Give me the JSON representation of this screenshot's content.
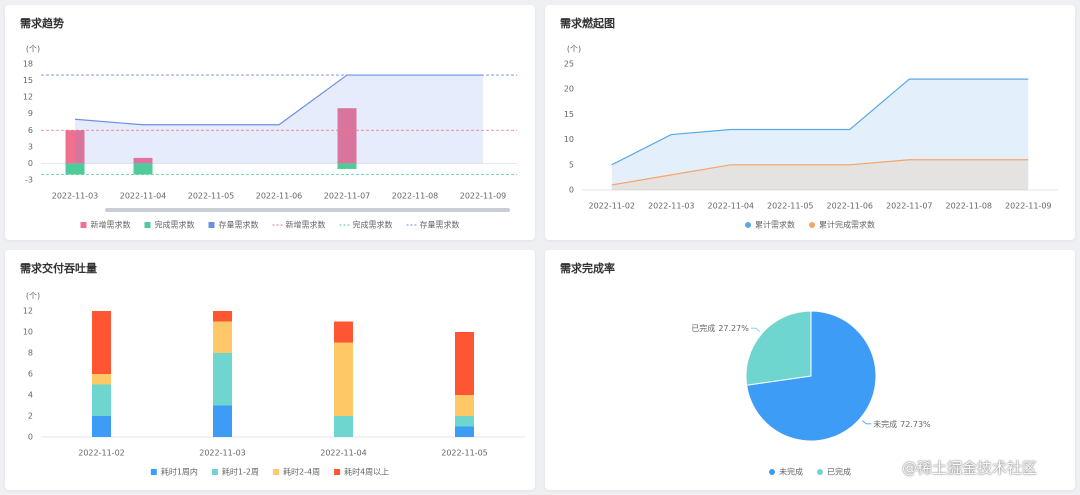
{
  "watermark": "@稀土掘金技术社区",
  "chart_data": [
    {
      "type": "bar",
      "title": "需求趋势",
      "y_label": "(个)",
      "stacked": true,
      "categories": [
        "2022-11-03",
        "2022-11-04",
        "2022-11-05",
        "2022-11-06",
        "2022-11-07",
        "2022-11-08",
        "2022-11-09"
      ],
      "ylim": [
        -3,
        18
      ],
      "yticks": [
        -3,
        0,
        3,
        6,
        9,
        12,
        15,
        18
      ],
      "series": [
        {
          "name": "新增需求数",
          "color": "#f0708f",
          "values": [
            6,
            1,
            0,
            0,
            10,
            0,
            0
          ]
        },
        {
          "name": "完成需求数",
          "color": "#4fcb9a",
          "values": [
            -2,
            -2,
            0,
            0,
            -1,
            0,
            0
          ]
        },
        {
          "name": "存量需求数",
          "color": "#6c8fe6",
          "type": "line",
          "area": true,
          "values": [
            8,
            7,
            7,
            7,
            16,
            16,
            16
          ]
        }
      ],
      "mark_lines": [
        {
          "name": "新增需求数",
          "color": "#f0708f",
          "value": 6
        },
        {
          "name": "完成需求数",
          "color": "#4fcb9a",
          "value": -2
        },
        {
          "name": "存量需求数",
          "color": "#6c8fe6",
          "value": 16
        }
      ]
    },
    {
      "type": "line",
      "title": "需求燃起图",
      "y_label": "(个)",
      "categories": [
        "2022-11-02",
        "2022-11-03",
        "2022-11-04",
        "2022-11-05",
        "2022-11-06",
        "2022-11-07",
        "2022-11-08",
        "2022-11-09"
      ],
      "ylim": [
        0,
        25
      ],
      "yticks": [
        0,
        5,
        10,
        15,
        20,
        25
      ],
      "series": [
        {
          "name": "累计需求数",
          "color": "#5aa9e6",
          "area": true,
          "values": [
            5,
            11,
            12,
            12,
            12,
            22,
            22,
            22
          ]
        },
        {
          "name": "累计完成需求数",
          "color": "#f4a56a",
          "area": true,
          "values": [
            1,
            3,
            5,
            5,
            5,
            6,
            6,
            6
          ]
        }
      ]
    },
    {
      "type": "bar",
      "title": "需求交付吞吐量",
      "y_label": "(个)",
      "stacked": true,
      "categories": [
        "2022-11-02",
        "2022-11-03",
        "2022-11-04",
        "2022-11-05"
      ],
      "ylim": [
        0,
        12
      ],
      "yticks": [
        0,
        2,
        4,
        6,
        8,
        10,
        12
      ],
      "series": [
        {
          "name": "耗时1周内",
          "color": "#3d9cf5",
          "values": [
            2,
            3,
            0,
            1
          ]
        },
        {
          "name": "耗时1-2周",
          "color": "#6fd6cf",
          "values": [
            3,
            5,
            2,
            1
          ]
        },
        {
          "name": "耗时2-4周",
          "color": "#fdc865",
          "values": [
            1,
            3,
            7,
            2
          ]
        },
        {
          "name": "耗时4周以上",
          "color": "#fe5533",
          "values": [
            6,
            1,
            2,
            6
          ]
        }
      ]
    },
    {
      "type": "pie",
      "title": "需求完成率",
      "categories": [
        "未完成",
        "已完成"
      ],
      "values": [
        72.73,
        27.27
      ],
      "value_labels": [
        "72.73%",
        "27.27%"
      ],
      "colors": [
        "#3d9cf5",
        "#6fd6cf"
      ]
    }
  ]
}
